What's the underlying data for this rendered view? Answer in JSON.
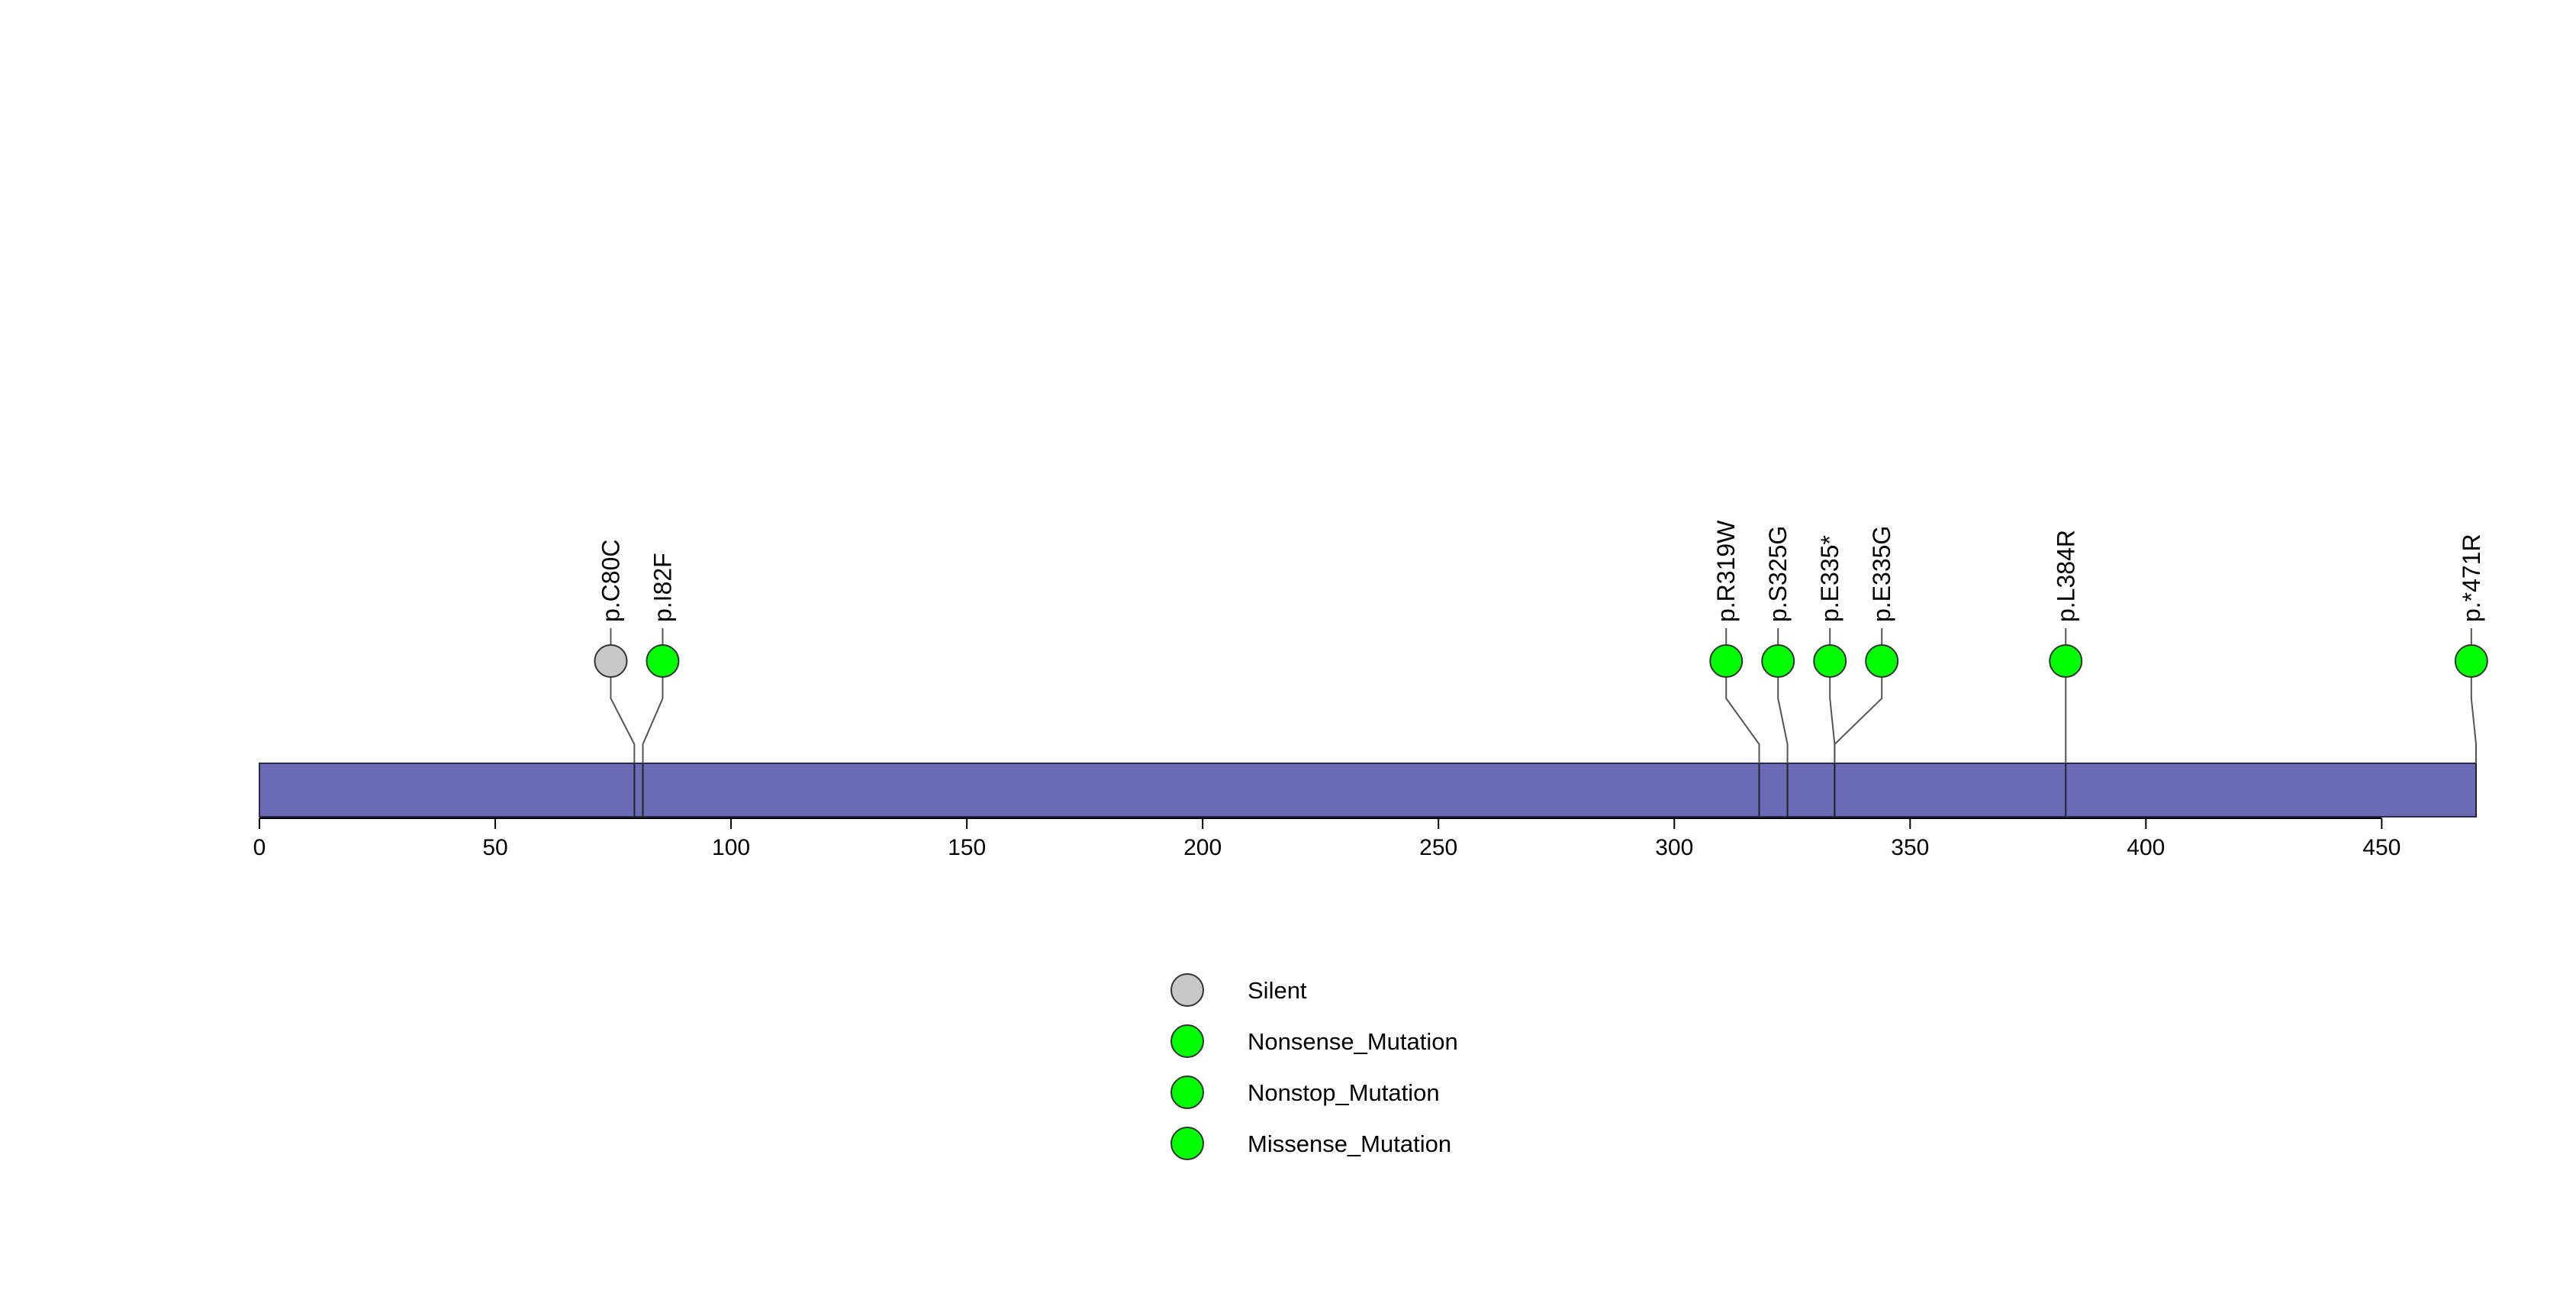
{
  "chart_data": {
    "type": "lollipop",
    "title": "",
    "xlabel": "",
    "ylabel": "",
    "xlim": [
      0,
      470
    ],
    "ticks": [
      "0",
      "50",
      "100",
      "150",
      "200",
      "250",
      "300",
      "350",
      "400",
      "450"
    ],
    "protein_length": 470,
    "bar_color": "#6B6BB5",
    "mutations": [
      {
        "label": "p.C80C",
        "position": 79.5,
        "display_position": 74.5,
        "type": "Silent"
      },
      {
        "label": "p.I82F",
        "position": 81.3,
        "display_position": 85.5,
        "type": "Missense_Mutation"
      },
      {
        "label": "p.R319W",
        "position": 318,
        "display_position": 311,
        "type": "Missense_Mutation"
      },
      {
        "label": "p.S325G",
        "position": 324,
        "display_position": 322,
        "type": "Missense_Mutation"
      },
      {
        "label": "p.E335*",
        "position": 334,
        "display_position": 333,
        "type": "Nonsense_Mutation"
      },
      {
        "label": "p.E335G",
        "position": 334,
        "display_position": 344,
        "type": "Missense_Mutation"
      },
      {
        "label": "p.L384R",
        "position": 383,
        "display_position": 383,
        "type": "Missense_Mutation"
      },
      {
        "label": "p.*471R",
        "position": 470,
        "display_position": 469,
        "type": "Nonstop_Mutation"
      }
    ],
    "legend": [
      {
        "name": "Silent",
        "color": "#C8C8C8"
      },
      {
        "name": "Nonsense_Mutation",
        "color": "#00FF00"
      },
      {
        "name": "Nonstop_Mutation",
        "color": "#00FF00"
      },
      {
        "name": "Missense_Mutation",
        "color": "#00FF00"
      }
    ],
    "legend_position": "bottom-center"
  }
}
